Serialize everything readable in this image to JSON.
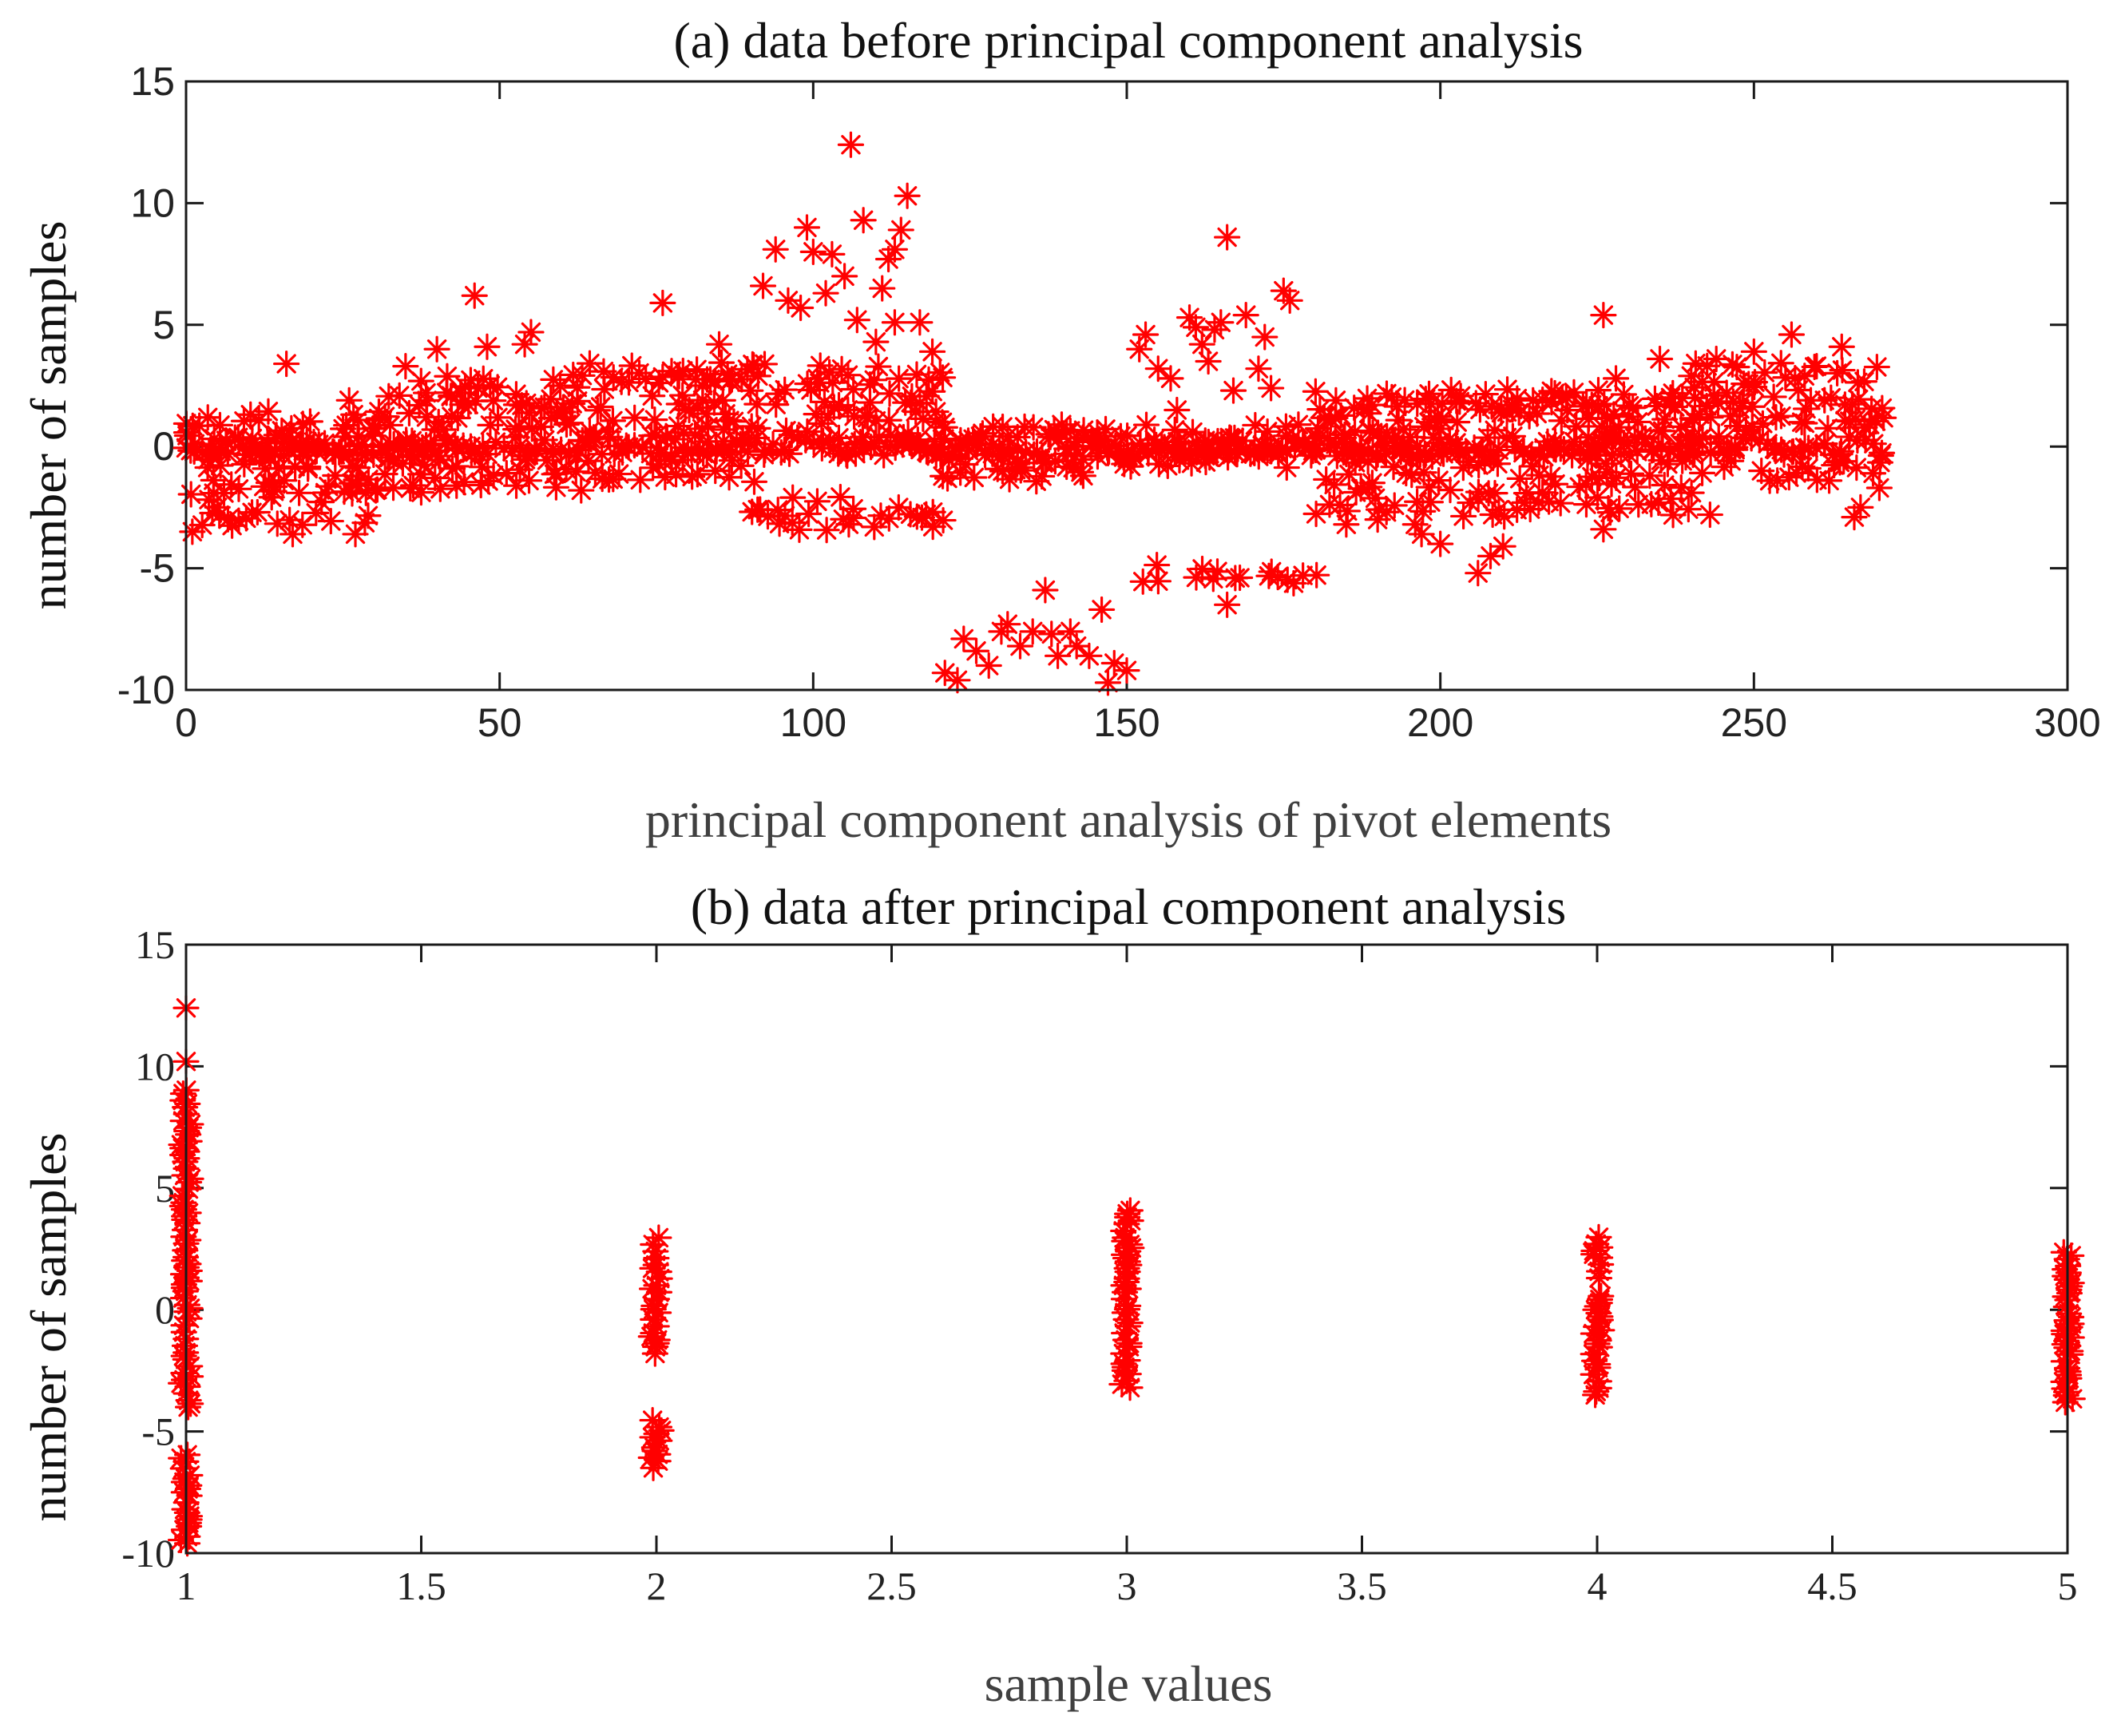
{
  "colors": {
    "marker": "#ff0000",
    "axes": "#1a1a1a",
    "background": "#ffffff"
  },
  "chart_data": [
    {
      "type": "scatter",
      "marker": "asterisk",
      "title": "(a) data before principal component analysis",
      "xlabel": "principal component analysis of pivot elements",
      "ylabel": "number of samples",
      "xlim": [
        0,
        300
      ],
      "ylim": [
        -10,
        15
      ],
      "xticks": [
        0,
        50,
        100,
        150,
        200,
        250,
        300
      ],
      "yticks": [
        -10,
        -5,
        0,
        5,
        10,
        15
      ],
      "xtick_labels": [
        "0",
        "50",
        "100",
        "150",
        "200",
        "250",
        "300"
      ],
      "ytick_labels": [
        "-10",
        "-5",
        "0",
        "5",
        "10",
        "15"
      ],
      "grid": false,
      "series": [
        {
          "name": "samples",
          "bands": [
            {
              "x_range": [
                0,
                30
              ],
              "y_values": [
                -2.8,
                -2.0,
                -1.2,
                -0.5,
                0,
                0.5,
                1.0
              ]
            },
            {
              "x_range": [
                30,
                60
              ],
              "y_values": [
                -1.5,
                -0.8,
                0,
                1.0,
                2.0,
                2.5
              ]
            },
            {
              "x_range": [
                60,
                90
              ],
              "y_values": [
                -1.0,
                0,
                0.8,
                1.5,
                2.5,
                3.0
              ]
            },
            {
              "x_range": [
                90,
                120
              ],
              "y_values": [
                -3.0,
                -2.5,
                0,
                0.8,
                1.5,
                2.5,
                3.0
              ]
            },
            {
              "x_range": [
                120,
                150
              ],
              "y_values": [
                -1.0,
                -0.5,
                0,
                0.5
              ]
            },
            {
              "x_range": [
                150,
                180
              ],
              "y_values": [
                -5.2,
                -0.5,
                0,
                0.5
              ]
            },
            {
              "x_range": [
                180,
                240
              ],
              "y_values": [
                -2.5,
                -1.5,
                -0.5,
                0,
                0.8,
                1.5,
                2.0
              ]
            },
            {
              "x_range": [
                240,
                270
              ],
              "y_values": [
                -1.0,
                0,
                1.0,
                2.0,
                3.0
              ]
            }
          ],
          "outliers": [
            [
              1,
              -3.5
            ],
            [
              5,
              -2.5
            ],
            [
              16,
              3.4
            ],
            [
              17,
              -3.6
            ],
            [
              27,
              -3.6
            ],
            [
              26,
              1.9
            ],
            [
              35,
              3.3
            ],
            [
              40,
              4.0
            ],
            [
              46,
              6.2
            ],
            [
              48,
              4.1
            ],
            [
              55,
              4.7
            ],
            [
              54,
              4.2
            ],
            [
              63,
              -1.8
            ],
            [
              76,
              5.9
            ],
            [
              85,
              4.2
            ],
            [
              92,
              6.6
            ],
            [
              94,
              8.1
            ],
            [
              96,
              6.0
            ],
            [
              98,
              5.7
            ],
            [
              99,
              9.0
            ],
            [
              100,
              8.0
            ],
            [
              102,
              6.3
            ],
            [
              103,
              7.9
            ],
            [
              105,
              7.0
            ],
            [
              106,
              12.4
            ],
            [
              107,
              5.2
            ],
            [
              108,
              9.3
            ],
            [
              110,
              4.3
            ],
            [
              111,
              6.5
            ],
            [
              112,
              7.7
            ],
            [
              113,
              8.1
            ],
            [
              114,
              8.9
            ],
            [
              115,
              10.3
            ],
            [
              113,
              5.1
            ],
            [
              117,
              5.1
            ],
            [
              119,
              3.9
            ],
            [
              121,
              -9.3
            ],
            [
              123,
              -9.6
            ],
            [
              124,
              -7.9
            ],
            [
              126,
              -8.4
            ],
            [
              128,
              -9.0
            ],
            [
              130,
              -7.6
            ],
            [
              131,
              -7.3
            ],
            [
              133,
              -8.2
            ],
            [
              135,
              -7.6
            ],
            [
              137,
              -5.9
            ],
            [
              138,
              -7.7
            ],
            [
              139,
              -8.6
            ],
            [
              141,
              -7.6
            ],
            [
              142,
              -8.2
            ],
            [
              144,
              -8.6
            ],
            [
              146,
              -6.7
            ],
            [
              147,
              -9.7
            ],
            [
              148,
              -8.9
            ],
            [
              150,
              -9.2
            ],
            [
              152,
              4.0
            ],
            [
              153,
              4.6
            ],
            [
              155,
              3.2
            ],
            [
              157,
              2.8
            ],
            [
              158,
              1.5
            ],
            [
              160,
              5.3
            ],
            [
              161,
              4.9
            ],
            [
              162,
              4.2
            ],
            [
              163,
              3.5
            ],
            [
              164,
              4.8
            ],
            [
              165,
              5.1
            ],
            [
              166,
              8.6
            ],
            [
              167,
              2.3
            ],
            [
              169,
              5.4
            ],
            [
              171,
              3.2
            ],
            [
              172,
              4.5
            ],
            [
              173,
              2.4
            ],
            [
              175,
              6.4
            ],
            [
              176,
              6.0
            ],
            [
              166,
              -6.5
            ],
            [
              184,
              -2.4
            ],
            [
              185,
              -3.2
            ],
            [
              190,
              -3.0
            ],
            [
              196,
              -3.2
            ],
            [
              197,
              -3.6
            ],
            [
              200,
              -4.0
            ],
            [
              206,
              -5.2
            ],
            [
              208,
              -4.5
            ],
            [
              210,
              -4.1
            ],
            [
              226,
              5.4
            ],
            [
              226,
              -3.4
            ],
            [
              228,
              2.8
            ],
            [
              235,
              3.6
            ],
            [
              240,
              2.9
            ],
            [
              243,
              -2.8
            ],
            [
              244,
              3.6
            ],
            [
              250,
              3.9
            ],
            [
              256,
              4.6
            ],
            [
              260,
              3.3
            ],
            [
              262,
              -1.4
            ],
            [
              264,
              4.1
            ],
            [
              266,
              -2.9
            ],
            [
              267,
              -2.5
            ],
            [
              269,
              -1.1
            ],
            [
              270,
              -1.7
            ]
          ]
        }
      ]
    },
    {
      "type": "scatter",
      "marker": "asterisk",
      "title": "(b) data after principal component analysis",
      "xlabel": "sample values",
      "ylabel": "number of samples",
      "xlim": [
        1,
        5
      ],
      "ylim": [
        -10,
        15
      ],
      "xticks": [
        1,
        1.5,
        2,
        2.5,
        3,
        3.5,
        4,
        4.5,
        5
      ],
      "yticks": [
        -10,
        -5,
        0,
        5,
        10,
        15
      ],
      "xtick_labels": [
        "1",
        "1.5",
        "2",
        "2.5",
        "3",
        "3.5",
        "4",
        "4.5",
        "5"
      ],
      "ytick_labels": [
        "-10",
        "-5",
        "0",
        "5",
        "10",
        "15"
      ],
      "grid": false,
      "series": [
        {
          "name": "samples",
          "columns": [
            {
              "x": 1,
              "y_ranges": [
                [
                  -4.0,
                  9.0
                ],
                [
                  -9.6,
                  -5.8
                ]
              ],
              "extra_y": [
                10.2,
                12.4
              ]
            },
            {
              "x": 2,
              "y_ranges": [
                [
                  -1.8,
                  3.2
                ],
                [
                  -6.5,
                  -4.3
                ]
              ]
            },
            {
              "x": 3,
              "y_ranges": [
                [
                  -3.2,
                  4.1
                ]
              ]
            },
            {
              "x": 4,
              "y_ranges": [
                [
                  1.3,
                  3.2
                ],
                [
                  -3.5,
                  0.6
                ]
              ]
            },
            {
              "x": 5,
              "y_ranges": [
                [
                  -3.8,
                  2.5
                ]
              ]
            }
          ]
        }
      ]
    }
  ]
}
